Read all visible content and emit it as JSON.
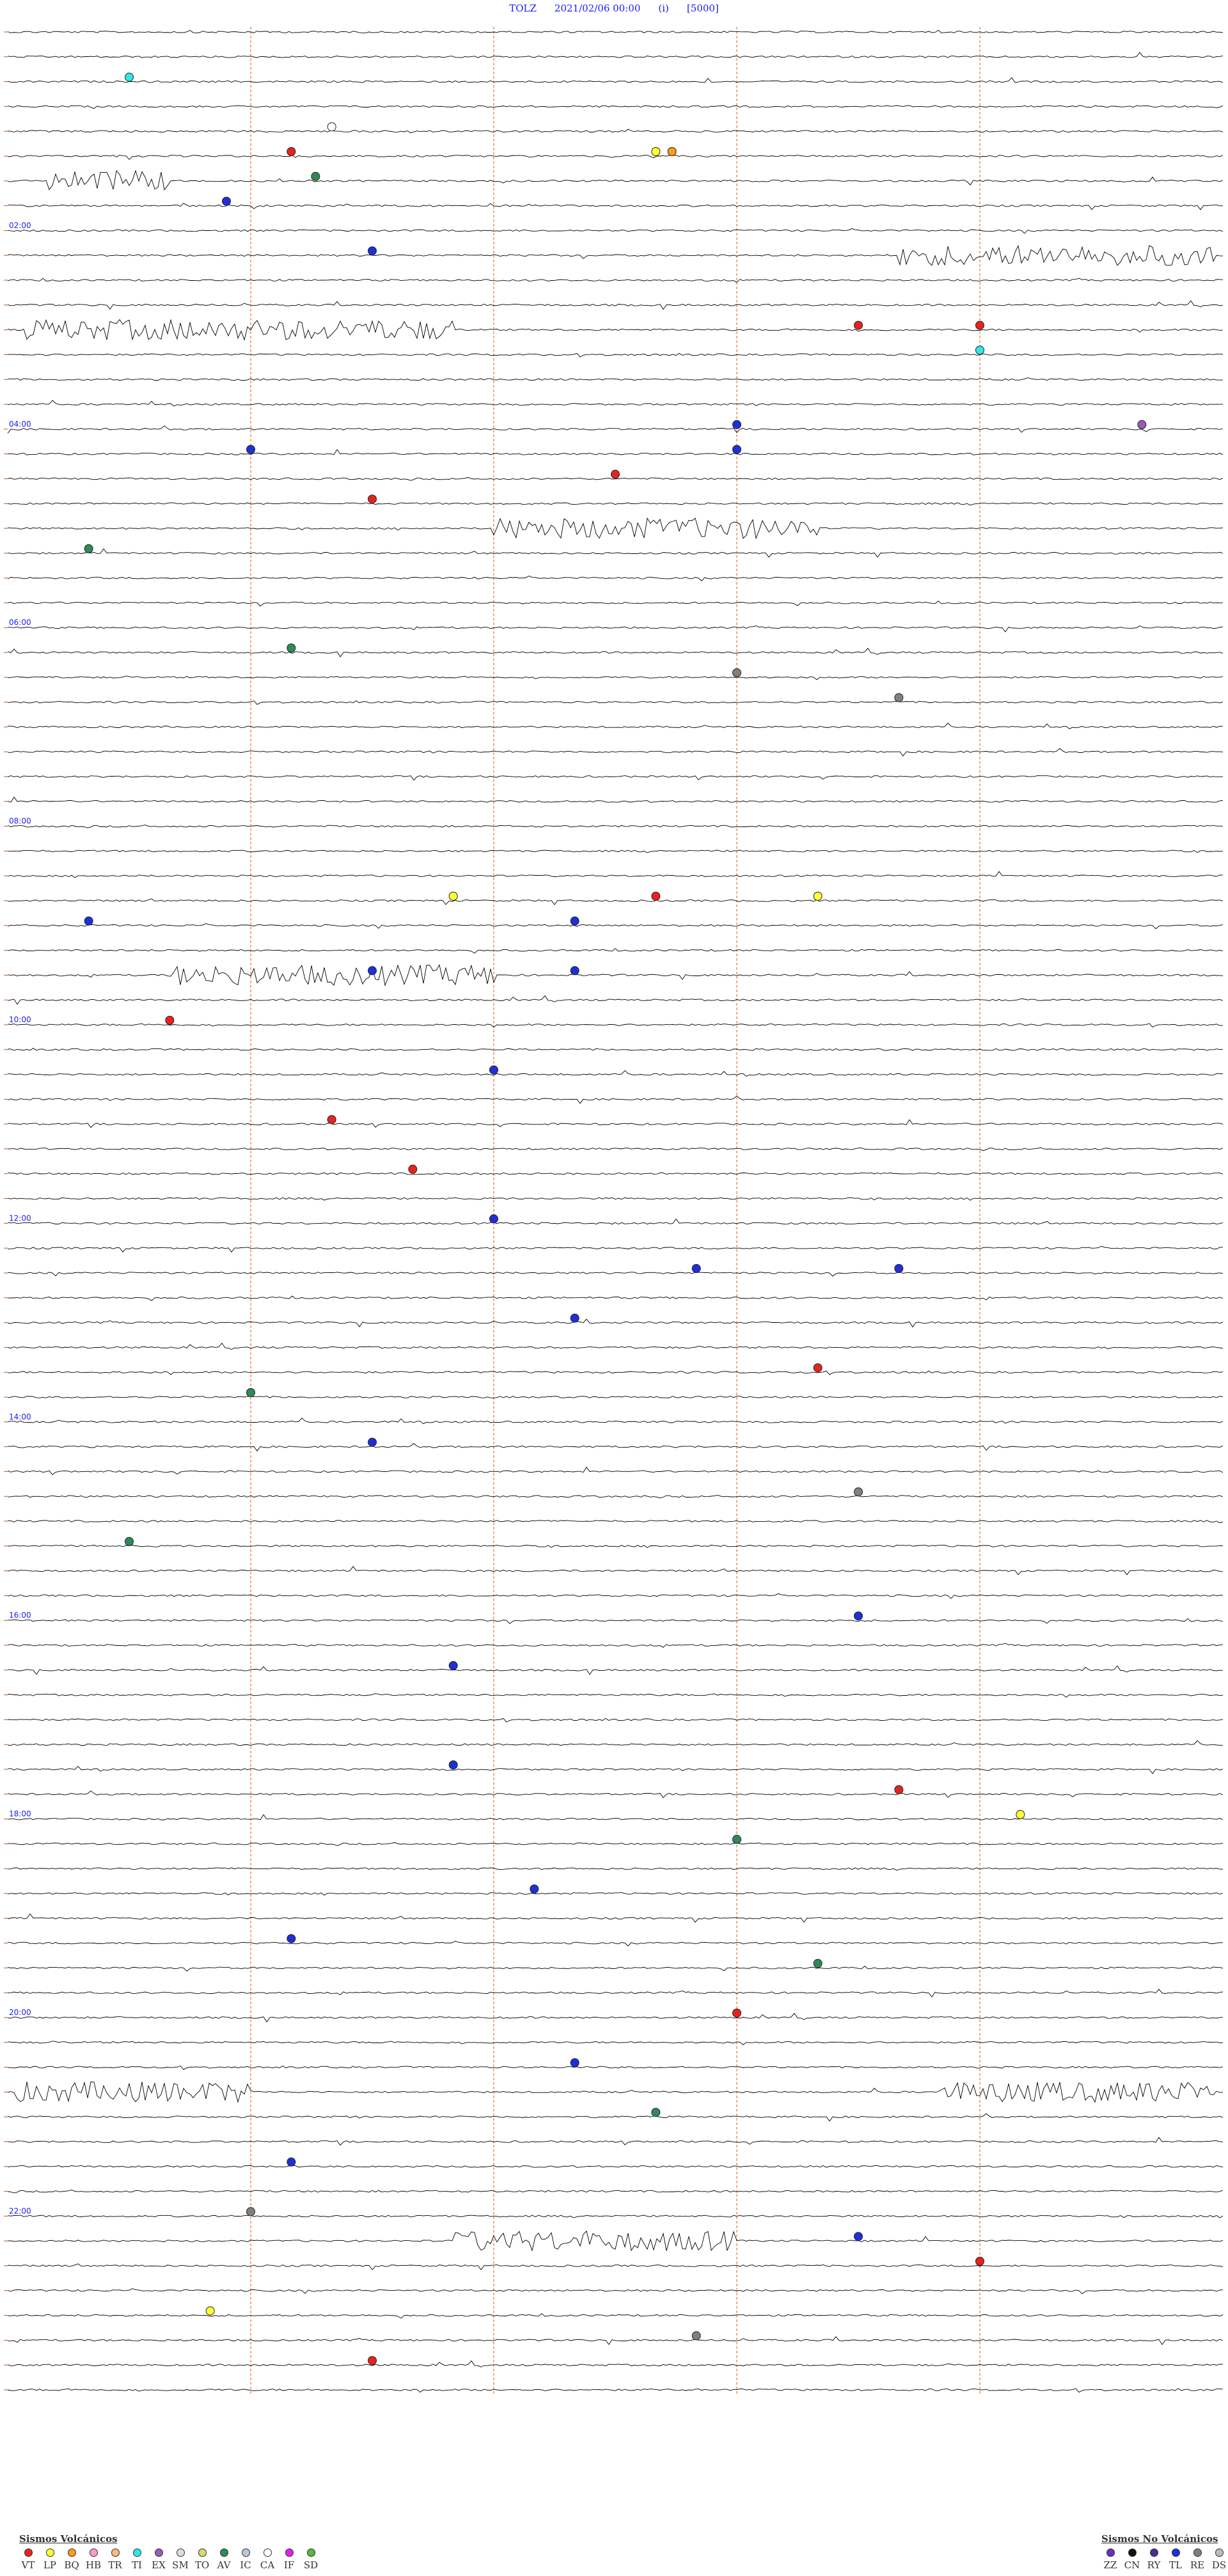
{
  "header": {
    "station": "TOLZ",
    "datetime": "2021/02/06 00:00",
    "component": "(i)",
    "scale": "[5000]"
  },
  "chart_data": {
    "type": "scatter",
    "hour_labels": [
      "02:00",
      "04:00",
      "06:00",
      "08:00",
      "10:00",
      "12:00",
      "14:00",
      "16:00",
      "18:00",
      "20:00",
      "22:00"
    ],
    "trace_count": 96,
    "colors": {
      "trace": "#000000",
      "gridline": "#e0763b",
      "label": "#1a1aff"
    },
    "events": [
      {
        "row": 2,
        "minute": 1.5,
        "type": "TI"
      },
      {
        "row": 4,
        "minute": 4.0,
        "type": "CA"
      },
      {
        "row": 5,
        "minute": 3.5,
        "type": "VT"
      },
      {
        "row": 5,
        "minute": 8.0,
        "type": "LP"
      },
      {
        "row": 5,
        "minute": 8.2,
        "type": "BQ"
      },
      {
        "row": 6,
        "minute": 3.8,
        "type": "AV"
      },
      {
        "row": 7,
        "minute": 2.7,
        "type": "TL"
      },
      {
        "row": 9,
        "minute": 4.5,
        "type": "TL"
      },
      {
        "row": 12,
        "minute": 10.5,
        "type": "VT"
      },
      {
        "row": 12,
        "minute": 12.0,
        "type": "VT"
      },
      {
        "row": 13,
        "minute": 12.0,
        "type": "TI"
      },
      {
        "row": 16,
        "minute": 9.0,
        "type": "TL"
      },
      {
        "row": 16,
        "minute": 14.0,
        "type": "EX"
      },
      {
        "row": 17,
        "minute": 3.0,
        "type": "TL"
      },
      {
        "row": 17,
        "minute": 9.0,
        "type": "TL"
      },
      {
        "row": 18,
        "minute": 7.5,
        "type": "VT"
      },
      {
        "row": 19,
        "minute": 4.5,
        "type": "VT"
      },
      {
        "row": 21,
        "minute": 1.0,
        "type": "AV"
      },
      {
        "row": 25,
        "minute": 3.5,
        "type": "AV"
      },
      {
        "row": 26,
        "minute": 9.0,
        "type": "RE"
      },
      {
        "row": 27,
        "minute": 11.0,
        "type": "RE"
      },
      {
        "row": 35,
        "minute": 5.5,
        "type": "LP"
      },
      {
        "row": 35,
        "minute": 10.0,
        "type": "LP"
      },
      {
        "row": 35,
        "minute": 8.0,
        "type": "VT"
      },
      {
        "row": 36,
        "minute": 1.0,
        "type": "TL"
      },
      {
        "row": 36,
        "minute": 7.0,
        "type": "TL"
      },
      {
        "row": 38,
        "minute": 4.5,
        "type": "TL"
      },
      {
        "row": 38,
        "minute": 7.0,
        "type": "TL"
      },
      {
        "row": 40,
        "minute": 2.0,
        "type": "VT"
      },
      {
        "row": 42,
        "minute": 6.0,
        "type": "TL"
      },
      {
        "row": 44,
        "minute": 4.0,
        "type": "VT"
      },
      {
        "row": 46,
        "minute": 5.0,
        "type": "VT"
      },
      {
        "row": 48,
        "minute": 6.0,
        "type": "TL"
      },
      {
        "row": 50,
        "minute": 8.5,
        "type": "TL"
      },
      {
        "row": 50,
        "minute": 11.0,
        "type": "TL"
      },
      {
        "row": 52,
        "minute": 7.0,
        "type": "TL"
      },
      {
        "row": 54,
        "minute": 10.0,
        "type": "VT"
      },
      {
        "row": 55,
        "minute": 3.0,
        "type": "AV"
      },
      {
        "row": 57,
        "minute": 4.5,
        "type": "TL"
      },
      {
        "row": 59,
        "minute": 10.5,
        "type": "RE"
      },
      {
        "row": 61,
        "minute": 1.5,
        "type": "AV"
      },
      {
        "row": 64,
        "minute": 10.5,
        "type": "TL"
      },
      {
        "row": 66,
        "minute": 5.5,
        "type": "TL"
      },
      {
        "row": 70,
        "minute": 5.5,
        "type": "TL"
      },
      {
        "row": 71,
        "minute": 11.0,
        "type": "VT"
      },
      {
        "row": 72,
        "minute": 12.5,
        "type": "LP"
      },
      {
        "row": 73,
        "minute": 9.0,
        "type": "AV"
      },
      {
        "row": 75,
        "minute": 6.5,
        "type": "TL"
      },
      {
        "row": 77,
        "minute": 3.5,
        "type": "TL"
      },
      {
        "row": 78,
        "minute": 10.0,
        "type": "AV"
      },
      {
        "row": 80,
        "minute": 9.0,
        "type": "VT"
      },
      {
        "row": 82,
        "minute": 7.0,
        "type": "TL"
      },
      {
        "row": 84,
        "minute": 8.0,
        "type": "AV"
      },
      {
        "row": 86,
        "minute": 3.5,
        "type": "TL"
      },
      {
        "row": 88,
        "minute": 3.0,
        "type": "RE"
      },
      {
        "row": 89,
        "minute": 10.5,
        "type": "TL"
      },
      {
        "row": 90,
        "minute": 12.0,
        "type": "VT"
      },
      {
        "row": 92,
        "minute": 2.5,
        "type": "LP"
      },
      {
        "row": 93,
        "minute": 8.5,
        "type": "RE"
      },
      {
        "row": 94,
        "minute": 4.5,
        "type": "VT"
      }
    ],
    "noise_bursts": [
      {
        "row": 6,
        "start": 0.5,
        "end": 2.0
      },
      {
        "row": 9,
        "start": 11.0,
        "end": 14.9
      },
      {
        "row": 12,
        "start": 0.2,
        "end": 5.5
      },
      {
        "row": 20,
        "start": 6.0,
        "end": 10.0
      },
      {
        "row": 38,
        "start": 2.0,
        "end": 6.0
      },
      {
        "row": 83,
        "start": 0.1,
        "end": 3.0
      },
      {
        "row": 83,
        "start": 11.5,
        "end": 14.9
      },
      {
        "row": 89,
        "start": 5.5,
        "end": 9.0
      }
    ]
  },
  "legend_volcanic": {
    "title": "Sismos Volcánicos",
    "items": [
      {
        "label": "VT",
        "color": "#e8231e"
      },
      {
        "label": "LP",
        "color": "#ffff33"
      },
      {
        "label": "BQ",
        "color": "#ff9a1a"
      },
      {
        "label": "HB",
        "color": "#ff9ac8"
      },
      {
        "label": "TR",
        "color": "#ffb87a"
      },
      {
        "label": "TI",
        "color": "#2ee8e8"
      },
      {
        "label": "EX",
        "color": "#9a5ab5"
      },
      {
        "label": "SM",
        "color": "#dcdcdc"
      },
      {
        "label": "TO",
        "color": "#d8d870"
      },
      {
        "label": "AV",
        "color": "#2e8b57"
      },
      {
        "label": "IC",
        "color": "#b9c7d6"
      },
      {
        "label": "CA",
        "color": "#ffffff"
      },
      {
        "label": "IF",
        "color": "#e61ee6"
      },
      {
        "label": "SD",
        "color": "#57b83a"
      }
    ]
  },
  "legend_nonvolcanic": {
    "title": "Sismos No Volcánicos",
    "items": [
      {
        "label": "ZZ",
        "color": "#6a2ec2"
      },
      {
        "label": "CN",
        "color": "#111111"
      },
      {
        "label": "RY",
        "color": "#4a2e8a"
      },
      {
        "label": "TL",
        "color": "#1f2fdb"
      },
      {
        "label": "RE",
        "color": "#808080"
      },
      {
        "label": "DS",
        "color": "#bdbdbd"
      }
    ]
  }
}
